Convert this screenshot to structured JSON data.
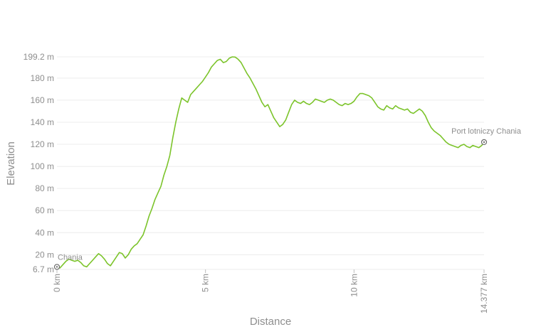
{
  "chart_data": {
    "type": "area",
    "xlabel": "Distance",
    "ylabel": "Elevation",
    "xlim": [
      0,
      14.377
    ],
    "ylim": [
      6.7,
      199.2
    ],
    "x_unit": "km",
    "y_unit": "m",
    "line_color": "#7cc42b",
    "grid": true,
    "y_ticks": [
      {
        "value": 6.7,
        "label": "6.7 m"
      },
      {
        "value": 20,
        "label": "20 m"
      },
      {
        "value": 40,
        "label": "40 m"
      },
      {
        "value": 60,
        "label": "60 m"
      },
      {
        "value": 80,
        "label": "80 m"
      },
      {
        "value": 100,
        "label": "100 m"
      },
      {
        "value": 120,
        "label": "120 m"
      },
      {
        "value": 140,
        "label": "140 m"
      },
      {
        "value": 160,
        "label": "160 m"
      },
      {
        "value": 180,
        "label": "180 m"
      },
      {
        "value": 199.2,
        "label": "199.2 m"
      }
    ],
    "x_ticks": [
      {
        "value": 0,
        "label": "0 km"
      },
      {
        "value": 5,
        "label": "5 km"
      },
      {
        "value": 10,
        "label": "10 km"
      },
      {
        "value": 14.377,
        "label": "14.377 km"
      }
    ],
    "waypoints": [
      {
        "name": "Chania",
        "x": 0,
        "y": 9
      },
      {
        "name": "Port lotniczy Chania",
        "x": 14.377,
        "y": 122
      }
    ],
    "series": [
      {
        "x": [
          0,
          0.1,
          0.2,
          0.3,
          0.4,
          0.5,
          0.6,
          0.7,
          0.8,
          0.9,
          1.0,
          1.1,
          1.2,
          1.3,
          1.4,
          1.5,
          1.6,
          1.7,
          1.8,
          1.9,
          2.0,
          2.1,
          2.2,
          2.3,
          2.4,
          2.5,
          2.6,
          2.7,
          2.8,
          2.9,
          3.0,
          3.1,
          3.2,
          3.3,
          3.4,
          3.5,
          3.6,
          3.7,
          3.8,
          3.9,
          4.0,
          4.1,
          4.2,
          4.3,
          4.4,
          4.5,
          4.6,
          4.7,
          4.8,
          4.9,
          5.0,
          5.1,
          5.2,
          5.3,
          5.4,
          5.5,
          5.6,
          5.7,
          5.8,
          5.9,
          6.0,
          6.1,
          6.2,
          6.3,
          6.4,
          6.5,
          6.6,
          6.7,
          6.8,
          6.9,
          7.0,
          7.1,
          7.2,
          7.3,
          7.4,
          7.5,
          7.6,
          7.7,
          7.8,
          7.9,
          8.0,
          8.1,
          8.2,
          8.3,
          8.4,
          8.5,
          8.6,
          8.7,
          8.8,
          8.9,
          9.0,
          9.1,
          9.2,
          9.3,
          9.4,
          9.5,
          9.6,
          9.7,
          9.8,
          9.9,
          10.0,
          10.1,
          10.2,
          10.3,
          10.4,
          10.5,
          10.6,
          10.7,
          10.8,
          10.9,
          11.0,
          11.1,
          11.2,
          11.3,
          11.4,
          11.5,
          11.6,
          11.7,
          11.8,
          11.9,
          12.0,
          12.1,
          12.2,
          12.3,
          12.4,
          12.5,
          12.6,
          12.7,
          12.8,
          12.9,
          13.0,
          13.1,
          13.2,
          13.3,
          13.4,
          13.5,
          13.6,
          13.7,
          13.8,
          13.9,
          14.0,
          14.1,
          14.2,
          14.3,
          14.377
        ],
        "y": [
          9,
          8,
          11,
          14,
          16,
          15,
          14,
          15,
          13,
          10,
          9,
          12,
          15,
          18,
          21,
          19,
          16,
          12,
          10,
          14,
          18,
          22,
          21,
          17,
          20,
          25,
          28,
          30,
          34,
          38,
          46,
          55,
          62,
          70,
          76,
          82,
          92,
          100,
          110,
          126,
          140,
          152,
          162,
          160,
          158,
          165,
          168,
          171,
          174,
          177,
          181,
          185,
          190,
          193,
          196,
          197,
          194,
          195,
          198,
          199.2,
          199,
          197,
          194,
          189,
          184,
          180,
          175,
          170,
          164,
          158,
          154,
          156,
          150,
          144,
          140,
          136,
          138,
          142,
          149,
          156,
          160,
          158,
          157,
          159,
          157,
          156,
          158,
          161,
          160,
          159,
          158,
          160,
          161,
          160,
          158,
          156,
          155,
          157,
          156,
          157,
          159,
          163,
          166,
          166,
          165,
          164,
          162,
          158,
          154,
          152,
          151,
          155,
          153,
          152,
          155,
          153,
          152,
          151,
          152,
          149,
          148,
          150,
          152,
          150,
          146,
          140,
          135,
          132,
          130,
          128,
          125,
          122,
          120,
          119,
          118,
          117,
          119,
          120,
          118,
          117,
          119,
          118,
          117,
          119,
          122
        ]
      }
    ]
  }
}
